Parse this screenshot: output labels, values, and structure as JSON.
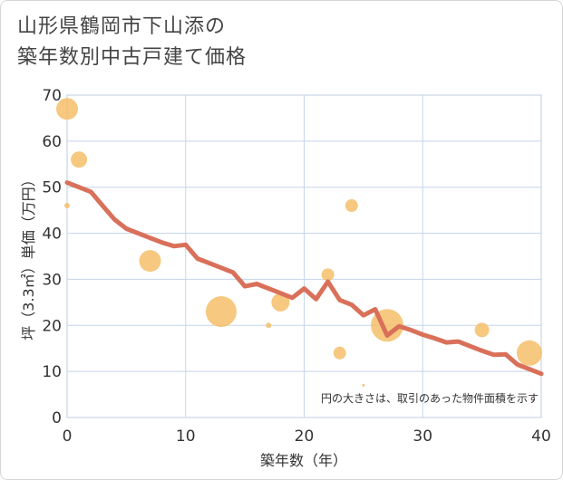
{
  "title": {
    "line1": "山形県鶴岡市下山添の",
    "line2": "築年数別中古戸建て価格"
  },
  "chart_data": {
    "type": "scatter",
    "title": "山形県鶴岡市下山添の築年数別中古戸建て価格",
    "xlabel": "築年数（年）",
    "ylabel": "坪（3.3㎡）単価（万円）",
    "xlim": [
      0,
      40
    ],
    "ylim": [
      0,
      70
    ],
    "xticks": [
      0,
      10,
      20,
      30,
      40
    ],
    "yticks": [
      0,
      10,
      20,
      30,
      40,
      50,
      60,
      70
    ],
    "grid": true,
    "note": "円の大きさは、取引のあった物件面積を示す",
    "colors": {
      "bubble": "#f5be6a",
      "line": "#d9705a",
      "grid": "#c5d5ea"
    },
    "bubbles": [
      {
        "x": 0,
        "y": 67,
        "size": 12
      },
      {
        "x": 0,
        "y": 46,
        "size": 3
      },
      {
        "x": 1,
        "y": 56,
        "size": 9
      },
      {
        "x": 7,
        "y": 34,
        "size": 12
      },
      {
        "x": 13,
        "y": 23,
        "size": 17
      },
      {
        "x": 17,
        "y": 20,
        "size": 3
      },
      {
        "x": 18,
        "y": 25,
        "size": 10
      },
      {
        "x": 22,
        "y": 31,
        "size": 7
      },
      {
        "x": 23,
        "y": 14,
        "size": 7
      },
      {
        "x": 24,
        "y": 46,
        "size": 7
      },
      {
        "x": 25,
        "y": 7,
        "size": 1.5
      },
      {
        "x": 27,
        "y": 20,
        "size": 18
      },
      {
        "x": 35,
        "y": 19,
        "size": 8
      },
      {
        "x": 39,
        "y": 14,
        "size": 14
      }
    ],
    "trend": {
      "x": [
        0,
        1,
        2,
        3,
        4,
        5,
        6,
        7,
        8,
        9,
        10,
        11,
        12,
        13,
        14,
        15,
        16,
        17,
        18,
        19,
        20,
        21,
        22,
        23,
        24,
        25,
        26,
        27,
        28,
        29,
        30,
        31,
        32,
        33,
        34,
        35,
        36,
        37,
        38,
        39,
        40
      ],
      "y": [
        51,
        50,
        49,
        46,
        43,
        41,
        40,
        39,
        38,
        37.2,
        37.5,
        34.5,
        33.5,
        32.5,
        31.5,
        28.5,
        29,
        28,
        27,
        26,
        28,
        25.7,
        29.5,
        25.5,
        24.5,
        22.2,
        23.5,
        17.8,
        19.8,
        19,
        18,
        17.2,
        16.3,
        16.5,
        15.5,
        14.5,
        13.6,
        13.7,
        11.5,
        10.5,
        9.5
      ]
    }
  }
}
